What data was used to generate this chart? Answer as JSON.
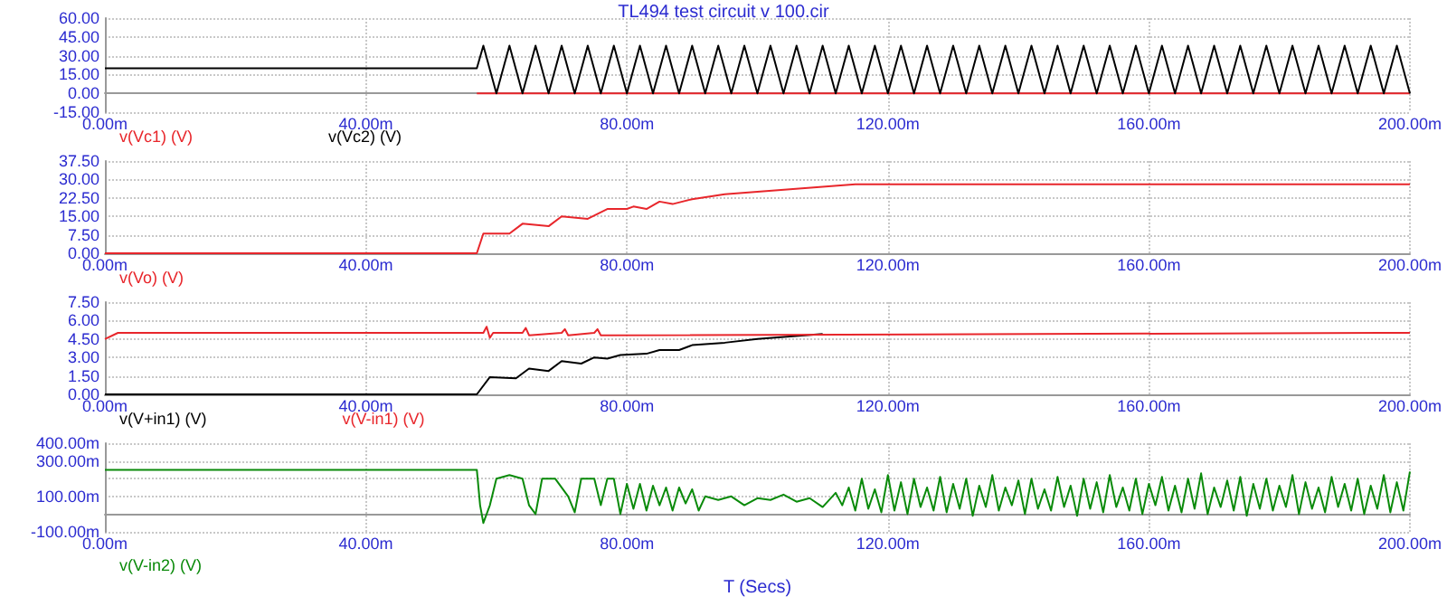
{
  "chart_data": [
    {
      "type": "line",
      "title": "TL494 test circuit v 100.cir",
      "xlim": [
        0,
        200
      ],
      "xticks": [
        {
          "value": 0,
          "label": "0.00m"
        },
        {
          "value": 40,
          "label": "40.00m"
        },
        {
          "value": 80,
          "label": "80.00m"
        },
        {
          "value": 120,
          "label": "120.00m"
        },
        {
          "value": 160,
          "label": "160.00m"
        },
        {
          "value": 200,
          "label": "200.00m"
        }
      ],
      "ylim": [
        -15,
        60
      ],
      "yticks": [
        {
          "value": -15,
          "label": "-15.00"
        },
        {
          "value": 0,
          "label": "0.00"
        },
        {
          "value": 15,
          "label": "15.00"
        },
        {
          "value": 30,
          "label": "30.00"
        },
        {
          "value": 45,
          "label": "45.00"
        },
        {
          "value": 60,
          "label": "60.00"
        }
      ],
      "grid": true,
      "legend": "bottom",
      "marker": "none",
      "line_style": "solid",
      "series": [
        {
          "name": "v(Vc1) (V)",
          "color": "#e8262b",
          "x": [
            57,
            200
          ],
          "values": [
            0,
            0
          ]
        },
        {
          "name": "v(Vc2) (V)",
          "color": "#000000",
          "x": [
            0,
            57,
            58,
            60,
            62,
            64,
            66,
            68,
            70,
            72,
            74,
            76,
            78,
            80,
            82,
            84,
            86,
            88,
            90,
            92,
            94,
            96,
            98,
            100,
            102,
            104,
            106,
            108,
            110,
            112,
            114,
            116,
            118,
            120,
            122,
            124,
            126,
            128,
            130,
            132,
            134,
            136,
            138,
            140,
            142,
            144,
            146,
            148,
            150,
            152,
            154,
            156,
            158,
            160,
            162,
            164,
            166,
            168,
            170,
            172,
            174,
            176,
            178,
            180,
            182,
            184,
            186,
            188,
            190,
            192,
            194,
            196,
            198,
            200
          ],
          "values": [
            20,
            20,
            38,
            0,
            38,
            0,
            38,
            0,
            38,
            0,
            38,
            0,
            38,
            0,
            38,
            0,
            38,
            0,
            38,
            0,
            38,
            0,
            38,
            0,
            38,
            0,
            38,
            0,
            38,
            0,
            38,
            0,
            38,
            0,
            38,
            0,
            38,
            0,
            38,
            0,
            38,
            0,
            38,
            0,
            38,
            0,
            38,
            0,
            38,
            0,
            38,
            0,
            38,
            0,
            38,
            0,
            38,
            0,
            38,
            0,
            38,
            0,
            38,
            0,
            38,
            0,
            38,
            0,
            38,
            0,
            38,
            0,
            38,
            0
          ]
        }
      ]
    },
    {
      "type": "line",
      "xlim": [
        0,
        200
      ],
      "xticks": [
        {
          "value": 0,
          "label": "0.00m"
        },
        {
          "value": 40,
          "label": "40.00m"
        },
        {
          "value": 80,
          "label": "80.00m"
        },
        {
          "value": 120,
          "label": "120.00m"
        },
        {
          "value": 160,
          "label": "160.00m"
        },
        {
          "value": 200,
          "label": "200.00m"
        }
      ],
      "ylim": [
        0,
        37.5
      ],
      "yticks": [
        {
          "value": 0,
          "label": "0.00"
        },
        {
          "value": 7.5,
          "label": "7.50"
        },
        {
          "value": 15,
          "label": "15.00"
        },
        {
          "value": 22.5,
          "label": "22.50"
        },
        {
          "value": 30,
          "label": "30.00"
        },
        {
          "value": 37.5,
          "label": "37.50"
        }
      ],
      "grid": true,
      "legend": "bottom",
      "marker": "none",
      "line_style": "solid",
      "series": [
        {
          "name": "v(Vo) (V)",
          "color": "#e8262b",
          "x": [
            0,
            57,
            58,
            62,
            64,
            68,
            70,
            74,
            77,
            80,
            81,
            83,
            85,
            87,
            90,
            95,
            100,
            105,
            110,
            115,
            120,
            200
          ],
          "values": [
            0,
            0,
            8,
            8,
            12,
            11,
            15,
            14,
            18,
            18,
            19,
            18,
            21,
            20,
            22,
            24,
            25,
            26,
            27,
            28,
            28,
            28
          ]
        }
      ]
    },
    {
      "type": "line",
      "xlim": [
        0,
        200
      ],
      "xticks": [
        {
          "value": 0,
          "label": "0.00m"
        },
        {
          "value": 40,
          "label": "40.00m"
        },
        {
          "value": 80,
          "label": "80.00m"
        },
        {
          "value": 120,
          "label": "120.00m"
        },
        {
          "value": 160,
          "label": "160.00m"
        },
        {
          "value": 200,
          "label": "200.00m"
        }
      ],
      "ylim": [
        0,
        7.5
      ],
      "yticks": [
        {
          "value": 0,
          "label": "0.00"
        },
        {
          "value": 1.5,
          "label": "1.50"
        },
        {
          "value": 3,
          "label": "3.00"
        },
        {
          "value": 4.5,
          "label": "4.50"
        },
        {
          "value": 6,
          "label": "6.00"
        },
        {
          "value": 7.5,
          "label": "7.50"
        }
      ],
      "grid": true,
      "legend": "bottom",
      "marker": "none",
      "line_style": "solid",
      "series": [
        {
          "name": "v(V+in1) (V)",
          "color": "#000000",
          "x": [
            0,
            57,
            59,
            63,
            65,
            68,
            70,
            73,
            75,
            77,
            79,
            83,
            85,
            88,
            90,
            95,
            100,
            105,
            110
          ],
          "values": [
            0,
            0,
            1.4,
            1.3,
            2.1,
            1.9,
            2.7,
            2.5,
            3,
            2.9,
            3.2,
            3.3,
            3.6,
            3.6,
            4,
            4.2,
            4.5,
            4.7,
            4.9
          ]
        },
        {
          "name": "v(V-in1) (V)",
          "color": "#e8262b",
          "x": [
            0,
            2,
            58,
            58.5,
            59,
            59.5,
            64,
            64.5,
            65,
            70,
            70.5,
            71,
            75,
            75.5,
            76,
            200
          ],
          "values": [
            4.5,
            5,
            5,
            5.5,
            4.6,
            5,
            5,
            5.4,
            4.8,
            5,
            5.3,
            4.8,
            5,
            5.3,
            4.8,
            5
          ]
        }
      ]
    },
    {
      "type": "line",
      "xlabel": "T (Secs)",
      "xlim": [
        0,
        200
      ],
      "xticks": [
        {
          "value": 0,
          "label": "0.00m"
        },
        {
          "value": 40,
          "label": "40.00m"
        },
        {
          "value": 80,
          "label": "80.00m"
        },
        {
          "value": 120,
          "label": "120.00m"
        },
        {
          "value": 160,
          "label": "160.00m"
        },
        {
          "value": 200,
          "label": "200.00m"
        }
      ],
      "ylim": [
        -100,
        400
      ],
      "yticks": [
        {
          "value": -100,
          "label": "-100.00m"
        },
        {
          "value": 0,
          "label": null
        },
        {
          "value": 100,
          "label": "100.00m"
        },
        {
          "value": 200,
          "label": null
        },
        {
          "value": 300,
          "label": "300.00m"
        },
        {
          "value": 400,
          "label": "400.00m"
        }
      ],
      "grid": true,
      "legend": "bottom",
      "marker": "none",
      "line_style": "solid",
      "series": [
        {
          "name": "v(V-in2) (V)",
          "color": "#0a8a0a",
          "x": [
            0,
            57,
            57.5,
            58,
            59,
            60,
            62,
            64,
            65,
            66,
            67,
            69,
            71,
            72,
            73,
            75,
            76,
            77,
            78,
            79,
            80,
            81,
            82,
            83,
            84,
            85,
            86,
            87,
            88,
            89,
            90,
            91,
            92,
            94,
            96,
            98,
            100,
            102,
            104,
            106,
            108,
            110,
            112,
            113,
            114,
            115,
            116,
            117,
            118,
            119,
            120,
            121,
            122,
            123,
            124,
            125,
            126,
            127,
            128,
            129,
            130,
            131,
            132,
            133,
            134,
            135,
            136,
            137,
            138,
            139,
            140,
            141,
            142,
            143,
            144,
            145,
            146,
            147,
            148,
            149,
            150,
            151,
            152,
            153,
            154,
            155,
            156,
            157,
            158,
            159,
            160,
            161,
            162,
            163,
            164,
            165,
            166,
            167,
            168,
            169,
            170,
            171,
            172,
            173,
            174,
            175,
            176,
            177,
            178,
            179,
            180,
            181,
            182,
            183,
            184,
            185,
            186,
            187,
            188,
            189,
            190,
            191,
            192,
            193,
            194,
            195,
            196,
            197,
            198,
            199,
            200
          ],
          "values": [
            250,
            250,
            50,
            -50,
            50,
            200,
            220,
            200,
            50,
            0,
            200,
            200,
            100,
            10,
            200,
            200,
            50,
            200,
            200,
            0,
            170,
            30,
            170,
            20,
            160,
            50,
            150,
            20,
            150,
            60,
            140,
            20,
            100,
            80,
            100,
            50,
            90,
            80,
            110,
            70,
            90,
            40,
            120,
            50,
            150,
            20,
            200,
            30,
            140,
            10,
            220,
            20,
            180,
            0,
            200,
            40,
            150,
            20,
            210,
            10,
            170,
            30,
            200,
            -10,
            160,
            40,
            220,
            20,
            150,
            50,
            190,
            0,
            200,
            30,
            140,
            20,
            210,
            40,
            160,
            -10,
            200,
            30,
            180,
            10,
            220,
            40,
            150,
            20,
            200,
            0,
            170,
            50,
            210,
            20,
            160,
            10,
            200,
            30,
            230,
            0,
            150,
            40,
            190,
            20,
            210,
            -10,
            170,
            30,
            200,
            20,
            160,
            40,
            220,
            0,
            180,
            30,
            150,
            10,
            210,
            40,
            170,
            20,
            200,
            0,
            160,
            30,
            220,
            10,
            180,
            20,
            240
          ]
        }
      ]
    }
  ]
}
